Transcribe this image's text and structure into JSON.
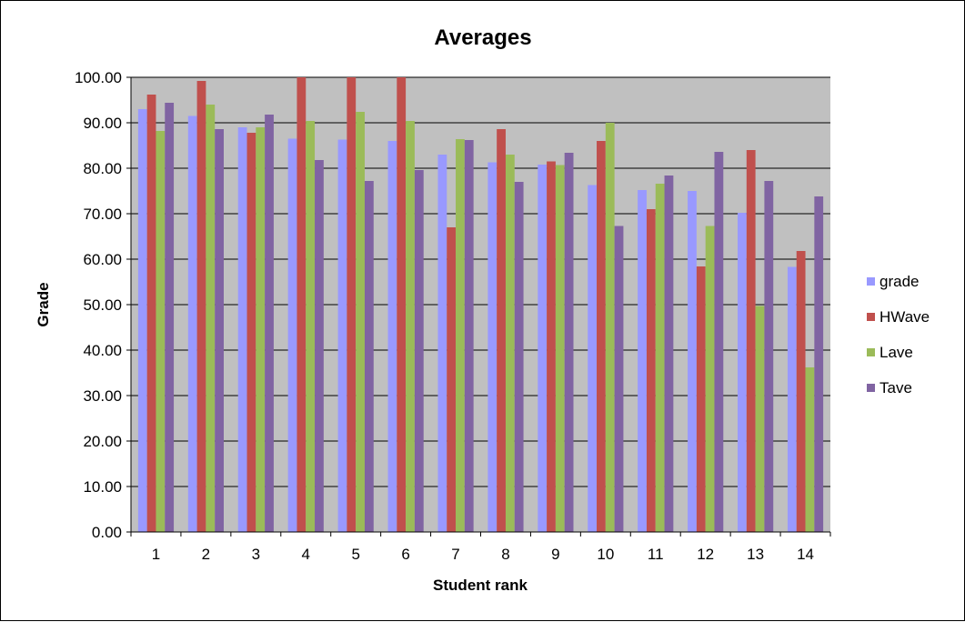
{
  "chart_data": {
    "type": "bar",
    "title": "Averages",
    "xlabel": "Student rank",
    "ylabel": "Grade",
    "ylim": [
      0,
      100
    ],
    "ytick_step": 10,
    "ytick_labels": [
      "0.00",
      "10.00",
      "20.00",
      "30.00",
      "40.00",
      "50.00",
      "60.00",
      "70.00",
      "80.00",
      "90.00",
      "100.00"
    ],
    "categories": [
      "1",
      "2",
      "3",
      "4",
      "5",
      "6",
      "7",
      "8",
      "9",
      "10",
      "11",
      "12",
      "13",
      "14"
    ],
    "grid": true,
    "legend_position": "right",
    "plot_background": "#c0c0c0",
    "series": [
      {
        "name": "grade",
        "color": "#9999ff",
        "values": [
          93.0,
          91.5,
          89.0,
          86.5,
          86.3,
          86.0,
          83.0,
          81.3,
          80.8,
          76.3,
          75.2,
          75.0,
          70.2,
          58.3
        ]
      },
      {
        "name": "HWave",
        "color": "#c0504d",
        "values": [
          96.2,
          99.2,
          87.8,
          100.0,
          100.0,
          100.0,
          67.0,
          88.6,
          81.5,
          86.0,
          71.0,
          58.4,
          84.0,
          61.8
        ]
      },
      {
        "name": "Lave",
        "color": "#9bbb59",
        "values": [
          88.2,
          94.0,
          89.0,
          90.4,
          92.4,
          90.4,
          86.4,
          83.0,
          80.7,
          90.0,
          76.6,
          67.3,
          49.7,
          36.2
        ]
      },
      {
        "name": "Tave",
        "color": "#8064a2",
        "values": [
          94.4,
          88.6,
          91.8,
          81.8,
          77.2,
          79.6,
          86.2,
          77.0,
          83.4,
          67.3,
          78.4,
          83.6,
          77.2,
          73.8
        ]
      }
    ]
  }
}
